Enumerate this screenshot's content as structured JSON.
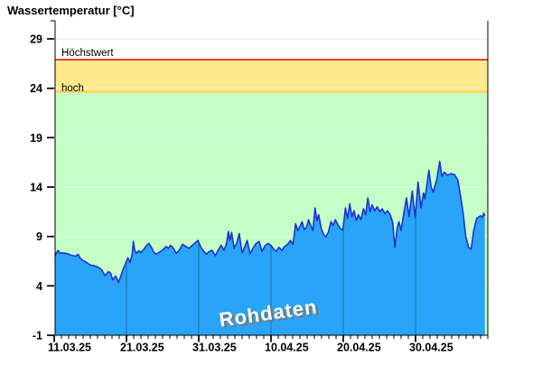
{
  "title": "Wassertemperatur [°C]",
  "watermark": "Rohdaten",
  "colors": {
    "area_fill": "#2aa4f8",
    "area_stroke": "#1d33c9",
    "zone_green": "#c5fec7",
    "zone_yellow": "#ffe98b",
    "zone_yellow_edge": "#ffd964",
    "threshold_red": "#ee0000",
    "axis": "#000000",
    "watermark_fill": "#ffffff",
    "watermark_shadow": "#777777"
  },
  "chart_data": {
    "type": "area",
    "title": "Wassertemperatur [°C]",
    "series": [
      {
        "name": "Rohdaten",
        "fill": "#2aa4f8",
        "stroke": "#1d33c9"
      }
    ],
    "x_axis": {
      "tick_labels": [
        "11.03.25",
        "21.03.25",
        "31.03.25",
        "10.04.25",
        "20.04.25",
        "30.04.25"
      ],
      "major_tick_interval_days": 10,
      "minor_tick_interval_days": 1,
      "range_days": [
        0,
        60
      ]
    },
    "y_axis": {
      "unit": "°C",
      "ticks": [
        -1,
        4,
        9,
        14,
        19,
        24,
        29
      ],
      "tick_labels": [
        "-1",
        "4",
        "9",
        "14",
        "19",
        "24",
        "29"
      ],
      "range": [
        -1,
        30.8
      ],
      "grid": true
    },
    "zones": [
      {
        "name": "normal",
        "from": -1,
        "to": 23.5,
        "color": "#c5fec7"
      },
      {
        "name": "hoch-edge",
        "from": 23.5,
        "to": 23.8,
        "color": "#ffd964"
      },
      {
        "name": "hoch",
        "from": 23.8,
        "to": 26.9,
        "color": "#ffe98b"
      }
    ],
    "threshold_line": {
      "label": "Höchstwert",
      "value": 26.9,
      "color": "#ee0000"
    },
    "band_label": {
      "label": "hoch",
      "at_value": 24
    },
    "grid": {
      "h_color_on_white": "#e9e9e9",
      "h_color_on_zones": "rgba(255,255,255,0.55)",
      "v_color": "rgba(0,35,60,0.42)"
    },
    "data": {
      "x_unit": "days_since_11.03.25",
      "y_unit": "°C",
      "x": [
        0.12,
        0.3,
        0.55,
        0.8,
        1.1,
        1.5,
        1.9,
        2.3,
        2.7,
        3.0,
        3.3,
        3.6,
        3.9,
        4.3,
        4.7,
        5.1,
        5.5,
        5.9,
        6.3,
        6.6,
        7.0,
        7.25,
        7.5,
        7.8,
        8.1,
        8.5,
        8.9,
        9.2,
        9.55,
        9.9,
        10.2,
        10.5,
        10.8,
        10.95,
        11.15,
        11.4,
        11.7,
        12.0,
        12.4,
        12.8,
        13.1,
        13.45,
        13.75,
        14.05,
        14.45,
        14.85,
        15.2,
        15.5,
        15.8,
        16.1,
        16.45,
        16.9,
        17.3,
        17.75,
        18.2,
        18.65,
        19.1,
        19.5,
        19.9,
        20.3,
        20.7,
        21.05,
        21.4,
        21.85,
        22.3,
        22.75,
        23.1,
        23.5,
        23.85,
        24.1,
        24.3,
        24.55,
        24.9,
        25.3,
        25.6,
        26.0,
        26.4,
        26.7,
        27.1,
        27.5,
        27.95,
        28.35,
        28.75,
        29.2,
        29.6,
        30.0,
        30.4,
        30.75,
        31.1,
        31.5,
        31.9,
        32.3,
        32.7,
        33.0,
        33.2,
        33.4,
        33.7,
        34.0,
        34.3,
        34.6,
        34.9,
        35.2,
        35.5,
        35.8,
        36.1,
        36.35,
        36.6,
        36.95,
        37.3,
        37.6,
        37.95,
        38.3,
        38.6,
        38.9,
        39.25,
        39.6,
        39.95,
        40.3,
        40.6,
        40.9,
        41.2,
        41.5,
        41.8,
        42.1,
        42.45,
        42.8,
        43.1,
        43.4,
        43.7,
        44.0,
        44.35,
        44.7,
        45.05,
        45.4,
        45.75,
        46.1,
        46.5,
        46.85,
        47.0,
        47.15,
        47.45,
        47.7,
        48.0,
        48.3,
        48.75,
        49.1,
        49.55,
        49.95,
        50.35,
        50.75,
        51.1,
        51.3,
        51.85,
        52.15,
        52.45,
        52.95,
        53.35,
        53.65,
        54.0,
        54.4,
        54.9,
        55.4,
        55.85,
        56.25,
        56.6,
        56.95,
        57.35,
        57.7,
        58.05,
        58.45,
        58.75,
        59.05,
        59.25,
        59.45,
        59.6
      ],
      "y": [
        7.0,
        7.35,
        7.6,
        7.3,
        7.35,
        7.3,
        7.25,
        7.1,
        7.05,
        7.0,
        7.2,
        6.8,
        6.6,
        6.45,
        6.25,
        6.1,
        6.05,
        5.95,
        5.8,
        5.6,
        5.05,
        5.2,
        5.45,
        5.3,
        4.6,
        5.0,
        4.35,
        4.95,
        5.7,
        6.3,
        6.85,
        6.35,
        7.2,
        8.5,
        7.6,
        7.3,
        7.55,
        7.4,
        7.7,
        8.1,
        8.3,
        7.9,
        7.45,
        7.2,
        7.35,
        7.55,
        7.75,
        8.0,
        7.8,
        8.1,
        7.85,
        7.3,
        7.6,
        8.2,
        8.0,
        7.8,
        8.1,
        8.35,
        8.6,
        7.9,
        7.5,
        7.2,
        7.45,
        7.6,
        7.05,
        7.7,
        8.1,
        7.6,
        8.3,
        9.5,
        8.6,
        9.4,
        7.8,
        8.4,
        9.3,
        7.35,
        8.0,
        8.6,
        7.25,
        7.8,
        8.3,
        8.5,
        7.5,
        8.1,
        8.3,
        8.1,
        7.7,
        7.5,
        7.9,
        7.6,
        8.0,
        8.2,
        8.6,
        8.2,
        9.0,
        10.3,
        9.6,
        10.0,
        10.5,
        9.7,
        9.9,
        10.7,
        10.1,
        9.6,
        11.9,
        10.6,
        11.2,
        9.8,
        9.2,
        8.95,
        9.45,
        10.5,
        10.1,
        10.7,
        10.2,
        9.8,
        9.65,
        11.9,
        10.8,
        12.3,
        11.0,
        11.6,
        10.6,
        11.2,
        10.7,
        11.8,
        11.2,
        12.9,
        11.5,
        12.2,
        11.6,
        12.0,
        11.5,
        11.8,
        11.3,
        11.6,
        11.2,
        10.4,
        9.0,
        7.9,
        9.8,
        10.5,
        9.6,
        11.0,
        12.9,
        11.0,
        13.6,
        10.9,
        14.5,
        11.9,
        13.4,
        12.8,
        15.7,
        14.0,
        13.5,
        14.8,
        16.6,
        15.1,
        15.5,
        15.2,
        15.35,
        15.25,
        14.7,
        13.0,
        11.3,
        9.0,
        7.9,
        7.7,
        9.6,
        10.8,
        11.0,
        11.1,
        10.9,
        11.35,
        11.1
      ]
    }
  }
}
